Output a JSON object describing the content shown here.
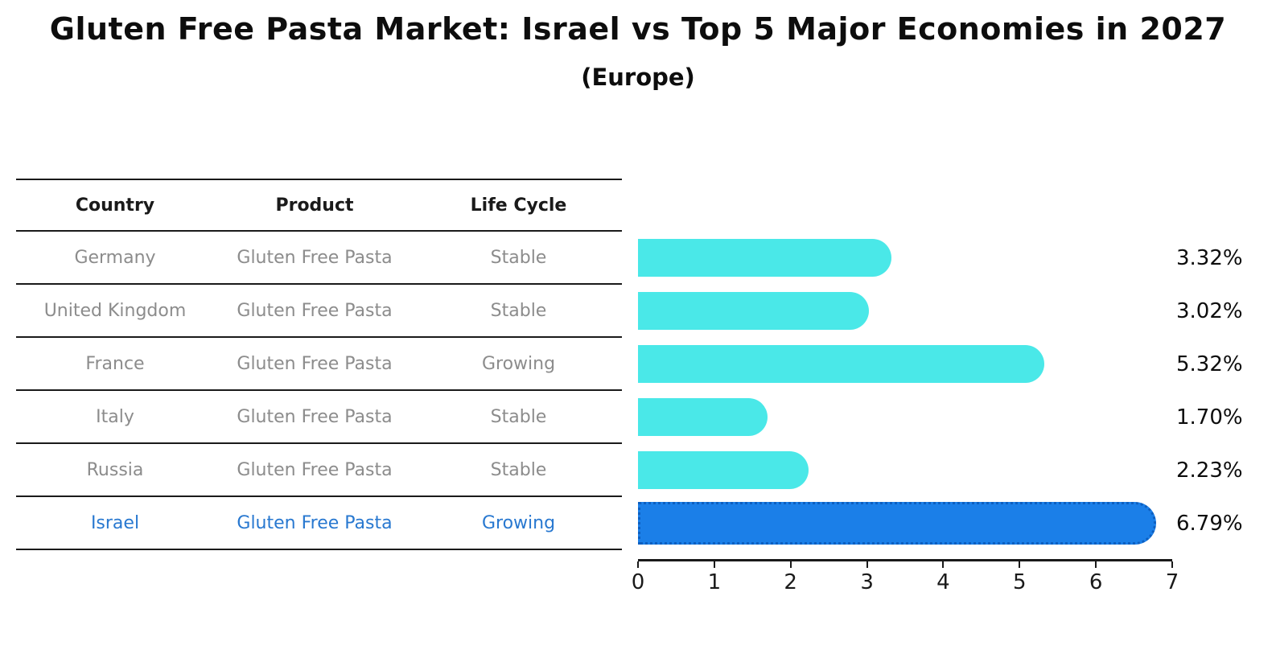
{
  "title": "Gluten Free Pasta Market: Israel vs Top 5 Major Economies in 2027",
  "subtitle": "(Europe)",
  "table": {
    "headers": [
      "Country",
      "Product",
      "Life Cycle"
    ],
    "rows": [
      {
        "country": "Germany",
        "product": "Gluten Free Pasta",
        "life_cycle": "Stable",
        "highlighted": false
      },
      {
        "country": "United Kingdom",
        "product": "Gluten Free Pasta",
        "life_cycle": "Stable",
        "highlighted": false
      },
      {
        "country": "France",
        "product": "Gluten Free Pasta",
        "life_cycle": "Growing",
        "highlighted": false
      },
      {
        "country": "Italy",
        "product": "Gluten Free Pasta",
        "life_cycle": "Stable",
        "highlighted": false
      },
      {
        "country": "Russia",
        "product": "Gluten Free Pasta",
        "life_cycle": "Stable",
        "highlighted": false
      },
      {
        "country": "Israel",
        "product": "Gluten Free Pasta",
        "life_cycle": "Growing",
        "highlighted": true
      }
    ]
  },
  "chart_data": {
    "type": "bar",
    "orientation": "horizontal",
    "title": "Gluten Free Pasta Market: Israel vs Top 5 Major Economies in 2027 (Europe)",
    "categories": [
      "Germany",
      "United Kingdom",
      "France",
      "Italy",
      "Russia",
      "Israel"
    ],
    "values": [
      3.32,
      3.02,
      5.32,
      1.7,
      2.23,
      6.79
    ],
    "value_labels": [
      "3.32%",
      "3.02%",
      "5.32%",
      "1.70%",
      "2.23%",
      "6.79%"
    ],
    "highlighted_category": "Israel",
    "xlim": [
      0,
      7
    ],
    "x_ticks": [
      "0",
      "1",
      "2",
      "3",
      "4",
      "5",
      "6",
      "7"
    ],
    "grid": false,
    "legend": false,
    "colors": {
      "bar": "#4ae8e8",
      "highlight_bar": "#1b7fe8",
      "highlight_bar_border": "#0d5fc0",
      "highlight_text": "#2878d0",
      "row_text": "#8c8c8c",
      "header_text": "#1a1a1a",
      "line": "#1a1a1a",
      "value_text": "#0d0d0d"
    }
  }
}
